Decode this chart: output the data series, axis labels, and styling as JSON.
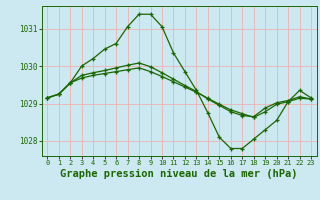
{
  "background_color": "#cce8f0",
  "grid_color": "#f0b0b0",
  "line_color": "#1a6600",
  "xlabel": "Graphe pression niveau de la mer (hPa)",
  "xlabel_fontsize": 7.5,
  "xtick_fontsize": 5.0,
  "ytick_fontsize": 5.5,
  "ylim": [
    1027.6,
    1031.6
  ],
  "xlim": [
    -0.5,
    23.5
  ],
  "yticks": [
    1028,
    1029,
    1030,
    1031
  ],
  "xticks": [
    0,
    1,
    2,
    3,
    4,
    5,
    6,
    7,
    8,
    9,
    10,
    11,
    12,
    13,
    14,
    15,
    16,
    17,
    18,
    19,
    20,
    21,
    22,
    23
  ],
  "line1_x": [
    0,
    1,
    2,
    3,
    4,
    5,
    6,
    7,
    8,
    9,
    10,
    11,
    12,
    13,
    14,
    15,
    16,
    17,
    18,
    19,
    20,
    21,
    22,
    23
  ],
  "line1_y": [
    1029.15,
    1029.25,
    1029.55,
    1030.0,
    1030.2,
    1030.45,
    1030.6,
    1031.05,
    1031.38,
    1031.38,
    1031.05,
    1030.35,
    1029.85,
    1029.35,
    1028.75,
    1028.1,
    1027.8,
    1027.8,
    1028.05,
    1028.3,
    1028.55,
    1029.05,
    1029.35,
    1029.15
  ],
  "line2_x": [
    0,
    1,
    2,
    3,
    4,
    5,
    6,
    7,
    8,
    9,
    10,
    11,
    12,
    13,
    14,
    15,
    16,
    17,
    18,
    19,
    20,
    21,
    22,
    23
  ],
  "line2_y": [
    1029.15,
    1029.25,
    1029.55,
    1029.75,
    1029.82,
    1029.88,
    1029.95,
    1030.02,
    1030.08,
    1029.98,
    1029.82,
    1029.65,
    1029.48,
    1029.32,
    1029.12,
    1028.95,
    1028.78,
    1028.68,
    1028.65,
    1028.88,
    1029.02,
    1029.08,
    1029.18,
    1029.12
  ],
  "line3_x": [
    0,
    1,
    2,
    3,
    4,
    5,
    6,
    7,
    8,
    9,
    10,
    11,
    12,
    13,
    14,
    15,
    16,
    17,
    18,
    19,
    20,
    21,
    22,
    23
  ],
  "line3_y": [
    1029.15,
    1029.25,
    1029.55,
    1029.68,
    1029.75,
    1029.8,
    1029.85,
    1029.9,
    1029.95,
    1029.85,
    1029.72,
    1029.58,
    1029.44,
    1029.3,
    1029.14,
    1028.98,
    1028.83,
    1028.73,
    1028.63,
    1028.78,
    1028.98,
    1029.05,
    1029.14,
    1029.12
  ]
}
